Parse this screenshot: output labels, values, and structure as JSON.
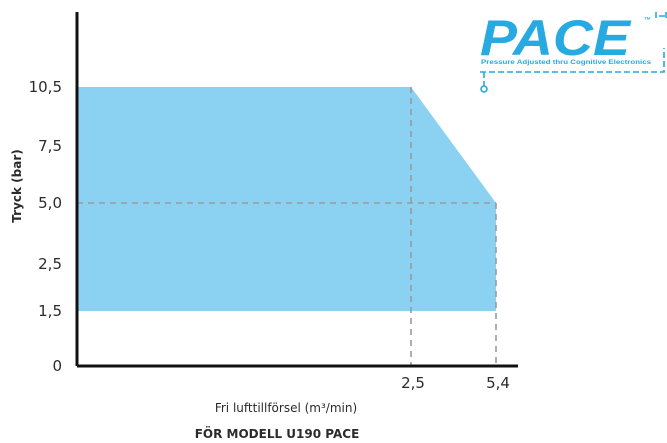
{
  "chart_data": {
    "type": "area",
    "title": "",
    "caption": "FÖR MODELL U190 PACE",
    "xlabel": "Fri lufttillförsel (m³/min)",
    "ylabel": "Tryck (bar)",
    "y_ticks": [
      {
        "value": 0,
        "label": "0"
      },
      {
        "value": 1.5,
        "label": "1,5"
      },
      {
        "value": 2.5,
        "label": "2,5"
      },
      {
        "value": 5.0,
        "label": "5,0"
      },
      {
        "value": 7.5,
        "label": "7,5"
      },
      {
        "value": 10.5,
        "label": "10,5"
      }
    ],
    "x_ticks": [
      {
        "value": 2.5,
        "label": "2,5"
      },
      {
        "value": 5.4,
        "label": "5,4"
      }
    ],
    "operating_envelope": {
      "min_pressure": 1.5,
      "upper_boundary": [
        {
          "x": 0,
          "y": 10.5
        },
        {
          "x": 2.5,
          "y": 10.5
        },
        {
          "x": 5.4,
          "y": 5.0
        }
      ]
    },
    "reference_lines": [
      {
        "axis": "y",
        "value": 5.0
      },
      {
        "axis": "x",
        "value": 2.5
      },
      {
        "axis": "x",
        "value": 5.4
      }
    ],
    "fill_color": "#8bd1f2",
    "reference_line_color": "#9a9a9a",
    "grid": false,
    "legend": "none"
  },
  "logo": {
    "wordmark": "PACE",
    "trademark": "™",
    "tagline": "Pressure Adjusted thru Cognitive Electronics",
    "color": "#27a9e1"
  }
}
